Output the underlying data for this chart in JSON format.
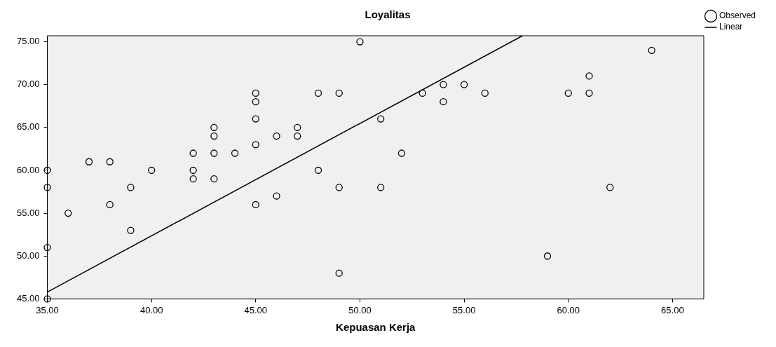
{
  "chart_data": {
    "type": "scatter",
    "title": "Loyalitas",
    "xlabel": "Kepuasan Kerja",
    "xlim": [
      35,
      66.5
    ],
    "ylim": [
      45,
      75.7
    ],
    "xticks": [
      {
        "value": 35,
        "label": "35.00"
      },
      {
        "value": 40,
        "label": "40.00"
      },
      {
        "value": 45,
        "label": "45.00"
      },
      {
        "value": 50,
        "label": "50.00"
      },
      {
        "value": 55,
        "label": "55.00"
      },
      {
        "value": 60,
        "label": "60.00"
      },
      {
        "value": 65,
        "label": "65.00"
      }
    ],
    "yticks": [
      {
        "value": 45,
        "label": "45.00"
      },
      {
        "value": 50,
        "label": "50.00"
      },
      {
        "value": 55,
        "label": "55.00"
      },
      {
        "value": 60,
        "label": "60.00"
      },
      {
        "value": 65,
        "label": "65.00"
      },
      {
        "value": 70,
        "label": "70.00"
      },
      {
        "value": 75,
        "label": "75.00"
      }
    ],
    "grid": false,
    "legend": "top right",
    "marker": "circle",
    "series": [
      {
        "name": "Observed",
        "type": "scatter",
        "color": "#000000",
        "x": [
          35,
          35,
          35,
          35,
          36,
          37,
          38,
          38,
          39,
          39,
          40,
          42,
          42,
          42,
          43,
          43,
          43,
          43,
          44,
          45,
          45,
          45,
          45,
          45,
          46,
          46,
          47,
          47,
          48,
          48,
          49,
          49,
          49,
          50,
          51,
          51,
          52,
          53,
          54,
          54,
          55,
          56,
          59,
          60,
          61,
          61,
          62,
          64
        ],
        "values": [
          45,
          51,
          58,
          60,
          55,
          61,
          61,
          56,
          58,
          53,
          60,
          62,
          60,
          59,
          65,
          64,
          62,
          59,
          62,
          69,
          68,
          66,
          63,
          56,
          64,
          57,
          65,
          64,
          69,
          60,
          69,
          58,
          48,
          75,
          66,
          58,
          62,
          69,
          70,
          68,
          70,
          69,
          50,
          69,
          71,
          69,
          58,
          74
        ]
      },
      {
        "name": "Linear",
        "type": "line",
        "marker": "none",
        "color": "#000000",
        "x": [
          35,
          57.8
        ],
        "values": [
          45.8,
          75.7
        ]
      }
    ]
  }
}
